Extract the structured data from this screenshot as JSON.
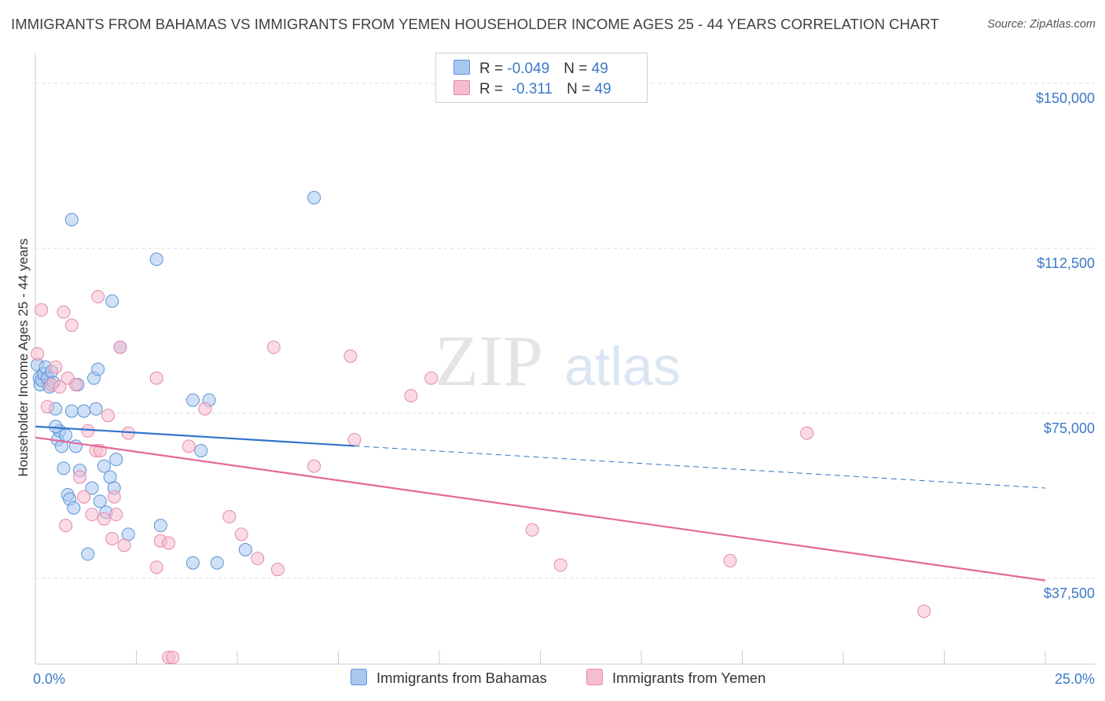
{
  "title": "IMMIGRANTS FROM BAHAMAS VS IMMIGRANTS FROM YEMEN HOUSEHOLDER INCOME AGES 25 - 44 YEARS CORRELATION CHART",
  "source": "Source: ZipAtlas.com",
  "watermark": {
    "zip": "ZIP",
    "atlas": "atlas"
  },
  "legend": {
    "rows": [
      {
        "r_label": "R = ",
        "r_value": "-0.049",
        "n_label": "N = ",
        "n_value": "49"
      },
      {
        "r_label": "R = ",
        "r_value": " -0.311",
        "n_label": "N = ",
        "n_value": "49"
      }
    ]
  },
  "bottom_legend": {
    "bahamas": "Immigrants from Bahamas",
    "yemen": "Immigrants from Yemen"
  },
  "colors": {
    "bahamas_fill": "#a9c8f0",
    "bahamas_stroke": "#5b93d6",
    "bahamas_line": "#2f74c9",
    "yemen_fill": "#f6bcd0",
    "yemen_stroke": "#e48aaa",
    "yemen_line": "#e3689a",
    "tick_text": "#3c78c8"
  },
  "chart_data": {
    "type": "scatter",
    "title": "IMMIGRANTS FROM BAHAMAS VS IMMIGRANTS FROM YEMEN HOUSEHOLDER INCOME AGES 25 - 44 YEARS CORRELATION CHART",
    "xlabel": "",
    "ylabel": "Householder Income Ages 25 - 44 years",
    "xlim": [
      0,
      25
    ],
    "ylim": [
      18000,
      155000
    ],
    "x_tick_labels": [
      "0.0%",
      "25.0%"
    ],
    "y_ticks": [
      37500,
      75000,
      112500,
      150000
    ],
    "y_tick_labels": [
      "$37,500",
      "$75,000",
      "$112,500",
      "$150,000"
    ],
    "series": [
      {
        "name": "Immigrants from Bahamas",
        "r": -0.049,
        "n": 49,
        "points": [
          [
            0.05,
            86000
          ],
          [
            0.1,
            83000
          ],
          [
            0.12,
            81500
          ],
          [
            0.15,
            82500
          ],
          [
            0.2,
            84000
          ],
          [
            0.25,
            85500
          ],
          [
            0.3,
            83000
          ],
          [
            0.35,
            81000
          ],
          [
            0.4,
            84500
          ],
          [
            0.45,
            82000
          ],
          [
            0.5,
            76000
          ],
          [
            0.55,
            69000
          ],
          [
            0.6,
            71000
          ],
          [
            0.65,
            67500
          ],
          [
            0.7,
            62500
          ],
          [
            0.75,
            70000
          ],
          [
            0.8,
            56500
          ],
          [
            0.85,
            55500
          ],
          [
            0.9,
            75500
          ],
          [
            0.95,
            53500
          ],
          [
            1.0,
            67500
          ],
          [
            1.05,
            81500
          ],
          [
            1.1,
            62000
          ],
          [
            1.2,
            75500
          ],
          [
            1.3,
            43000
          ],
          [
            1.4,
            58000
          ],
          [
            1.45,
            83000
          ],
          [
            1.5,
            76000
          ],
          [
            1.55,
            85000
          ],
          [
            1.6,
            55000
          ],
          [
            1.7,
            63000
          ],
          [
            1.75,
            52500
          ],
          [
            1.85,
            60500
          ],
          [
            1.9,
            100500
          ],
          [
            1.95,
            58000
          ],
          [
            2.0,
            64500
          ],
          [
            2.1,
            90000
          ],
          [
            2.3,
            47500
          ],
          [
            0.9,
            119000
          ],
          [
            3.0,
            110000
          ],
          [
            3.1,
            49500
          ],
          [
            3.9,
            78000
          ],
          [
            3.9,
            41000
          ],
          [
            4.1,
            66500
          ],
          [
            4.3,
            78000
          ],
          [
            4.5,
            41000
          ],
          [
            5.2,
            44000
          ],
          [
            6.9,
            124000
          ],
          [
            0.5,
            72000
          ]
        ]
      },
      {
        "name": "Immigrants from Yemen",
        "r": -0.311,
        "n": 49,
        "points": [
          [
            0.05,
            88500
          ],
          [
            0.15,
            98500
          ],
          [
            0.3,
            76500
          ],
          [
            0.4,
            81500
          ],
          [
            0.5,
            85500
          ],
          [
            0.6,
            81000
          ],
          [
            0.7,
            98000
          ],
          [
            0.75,
            49500
          ],
          [
            0.8,
            83000
          ],
          [
            0.9,
            95000
          ],
          [
            1.0,
            81500
          ],
          [
            1.1,
            60500
          ],
          [
            1.2,
            56000
          ],
          [
            1.3,
            71000
          ],
          [
            1.4,
            52000
          ],
          [
            1.5,
            66500
          ],
          [
            1.55,
            101500
          ],
          [
            1.6,
            66500
          ],
          [
            1.7,
            51000
          ],
          [
            1.8,
            74500
          ],
          [
            1.9,
            46500
          ],
          [
            1.95,
            56000
          ],
          [
            2.0,
            52000
          ],
          [
            2.1,
            90000
          ],
          [
            2.2,
            45000
          ],
          [
            2.3,
            70500
          ],
          [
            3.0,
            83000
          ],
          [
            3.0,
            40000
          ],
          [
            3.1,
            46000
          ],
          [
            3.3,
            19500
          ],
          [
            3.3,
            45500
          ],
          [
            3.4,
            19500
          ],
          [
            3.8,
            67500
          ],
          [
            4.2,
            76000
          ],
          [
            4.8,
            51500
          ],
          [
            5.1,
            47500
          ],
          [
            5.5,
            42000
          ],
          [
            5.9,
            90000
          ],
          [
            6.0,
            39500
          ],
          [
            6.9,
            63000
          ],
          [
            7.8,
            88000
          ],
          [
            7.9,
            69000
          ],
          [
            9.3,
            79000
          ],
          [
            9.8,
            83000
          ],
          [
            12.3,
            48500
          ],
          [
            13.0,
            40500
          ],
          [
            17.2,
            41500
          ],
          [
            19.1,
            70500
          ],
          [
            22.0,
            30000
          ]
        ]
      }
    ],
    "trendlines": [
      {
        "series": "Immigrants from Bahamas",
        "x_solid": [
          0,
          7.9
        ],
        "x_dashed": [
          7.9,
          25
        ],
        "y_at_x0": 72000,
        "y_at_x25": 58000
      },
      {
        "series": "Immigrants from Yemen",
        "x": [
          0,
          25
        ],
        "y_at_x0": 69500,
        "y_at_x25": 37000
      }
    ],
    "grid": true,
    "legend_placement": "top-center"
  }
}
